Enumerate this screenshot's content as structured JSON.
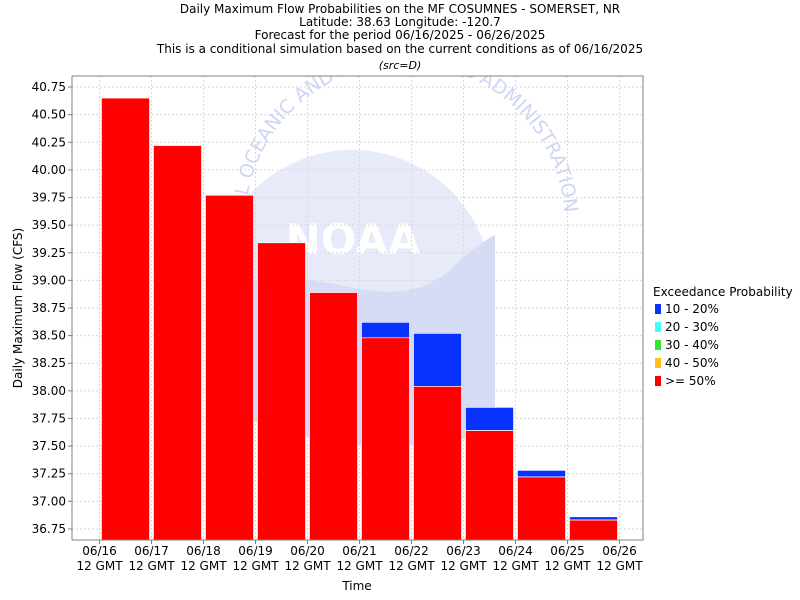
{
  "chart_data": {
    "type": "bar",
    "title_lines": [
      "Daily Maximum Flow Probabilities on the MF COSUMNES - SOMERSET, NR",
      "Latitude: 38.63 Longitude: -120.7",
      "Forecast for the period 06/16/2025 - 06/26/2025",
      "This is a conditional simulation based on the current conditions as of 06/16/2025"
    ],
    "subtitle": "(src=D)",
    "xlabel": "Time",
    "ylabel": "Daily Maximum Flow (CFS)",
    "ylim": [
      36.65,
      40.85
    ],
    "y_ticks": [
      36.75,
      37.0,
      37.25,
      37.5,
      37.75,
      38.0,
      38.25,
      38.5,
      38.75,
      39.0,
      39.25,
      39.5,
      39.75,
      40.0,
      40.25,
      40.5,
      40.75
    ],
    "y_tick_labels": [
      "36.75",
      "37.00",
      "37.25",
      "37.50",
      "37.75",
      "38.00",
      "38.25",
      "38.50",
      "38.75",
      "39.00",
      "39.25",
      "39.50",
      "39.75",
      "40.00",
      "40.25",
      "40.50",
      "40.75"
    ],
    "x_ticks": [
      {
        "date": "06/16",
        "label2": "12 GMT"
      },
      {
        "date": "06/17",
        "label2": "12 GMT"
      },
      {
        "date": "06/18",
        "label2": "12 GMT"
      },
      {
        "date": "06/19",
        "label2": "12 GMT"
      },
      {
        "date": "06/20",
        "label2": "12 GMT"
      },
      {
        "date": "06/21",
        "label2": "12 GMT"
      },
      {
        "date": "06/22",
        "label2": "12 GMT"
      },
      {
        "date": "06/23",
        "label2": "12 GMT"
      },
      {
        "date": "06/24",
        "label2": "12 GMT"
      },
      {
        "date": "06/25",
        "label2": "12 GMT"
      },
      {
        "date": "06/26",
        "label2": "12 GMT"
      }
    ],
    "categories": [
      "06/16",
      "06/17",
      "06/18",
      "06/19",
      "06/20",
      "06/21",
      "06/22",
      "06/23",
      "06/24",
      "06/25"
    ],
    "series": [
      {
        "name": "10 - 20%",
        "color": "#0a32ff",
        "values": [
          40.65,
          40.22,
          39.77,
          39.34,
          38.89,
          38.62,
          38.52,
          37.85,
          37.28,
          36.86
        ]
      },
      {
        "name": "20 - 30%",
        "color": "#40ffff",
        "values": [
          40.65,
          40.22,
          39.77,
          39.34,
          38.89,
          38.48,
          38.04,
          37.64,
          37.22,
          36.83
        ]
      },
      {
        "name": "30 - 40%",
        "color": "#33e633",
        "values": [
          40.65,
          40.22,
          39.77,
          39.34,
          38.89,
          38.48,
          38.04,
          37.64,
          37.22,
          36.83
        ]
      },
      {
        "name": "40 - 50%",
        "color": "#ffbf1a",
        "values": [
          40.65,
          40.22,
          39.77,
          39.34,
          38.89,
          38.48,
          38.04,
          37.64,
          37.22,
          36.83
        ]
      },
      {
        "name": ">= 50%",
        "color": "#ff0000",
        "values": [
          40.65,
          40.22,
          39.77,
          39.34,
          38.89,
          38.48,
          38.04,
          37.64,
          37.22,
          36.83
        ]
      }
    ],
    "legend_title": "Exceedance Probability",
    "legend_position": "right",
    "grid": true,
    "watermark": {
      "logo_text": "NOAA",
      "arc_text": "NATIONAL OCEANIC AND ATMOSPHERIC ADMINISTRATION",
      "colors": {
        "light": "#e6eaf9",
        "mid": "#d6dcf6"
      }
    }
  }
}
